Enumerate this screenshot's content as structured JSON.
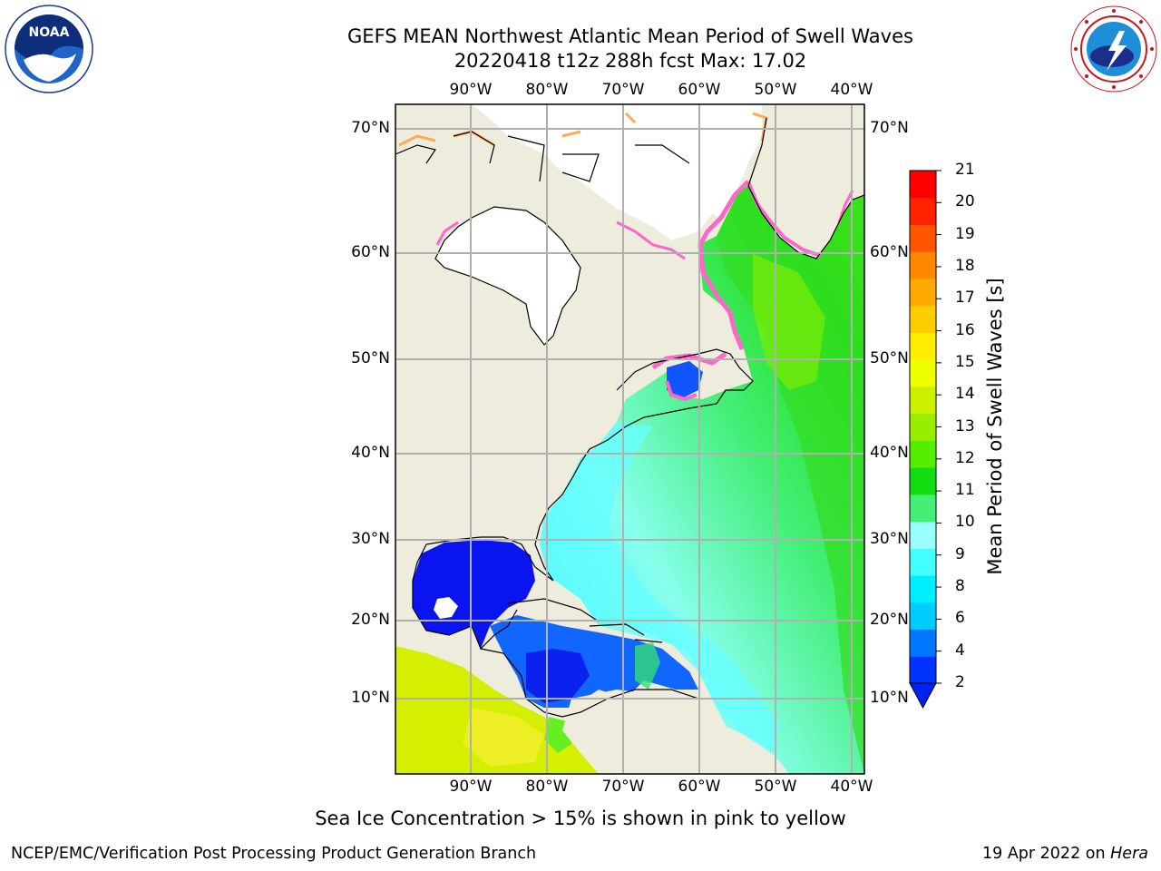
{
  "title": {
    "line1": "GEFS MEAN Northwest Atlantic Mean Period of Swell Waves",
    "line2": "20220418 t12z 288h fcst   Max: 17.02"
  },
  "logos": {
    "left": "NOAA",
    "right_icon": "nws-logo",
    "left_icon": "noaa-logo"
  },
  "axes": {
    "lon_labels": [
      "90°W",
      "80°W",
      "70°W",
      "60°W",
      "50°W",
      "40°W"
    ],
    "lat_labels": [
      "70°N",
      "60°N",
      "50°N",
      "40°N",
      "30°N",
      "20°N",
      "10°N"
    ]
  },
  "colorbar": {
    "title": "Mean Period of Swell Waves [s]",
    "ticks": [
      "2",
      "4",
      "6",
      "8",
      "9",
      "10",
      "11",
      "12",
      "13",
      "14",
      "15",
      "16",
      "17",
      "18",
      "19",
      "20",
      "21"
    ],
    "colors": [
      "#0033ff",
      "#0077ff",
      "#00ccff",
      "#00eeff",
      "#44ffff",
      "#99ffff",
      "#44ee77",
      "#11dd11",
      "#55ee00",
      "#99ee00",
      "#ccf000",
      "#eeff00",
      "#ffee00",
      "#ffcc00",
      "#ffaa00",
      "#ff8800",
      "#ff5500",
      "#ff2200",
      "#ff0000"
    ],
    "extend_color": "#0022ee"
  },
  "caption": "Sea Ice Concentration > 15% is shown in pink to yellow",
  "footer": {
    "left": "NCEP/EMC/Verification Post Processing Product Generation Branch",
    "date": "19 Apr 2022 on ",
    "machine": "Hera"
  },
  "map_colors": {
    "land": "#eeecdc",
    "ice_free": "#ffffff",
    "ice_edge": "#ff66cc"
  }
}
